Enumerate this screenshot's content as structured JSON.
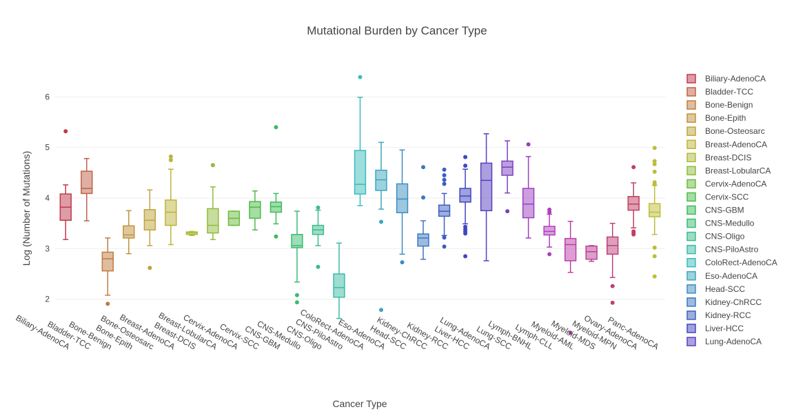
{
  "chart_data": {
    "type": "box",
    "title": "Mutational Burden by Cancer Type",
    "xlabel": "Cancer Type",
    "ylabel": "Log (Number of Mutations)",
    "ylim": [
      1.3,
      6.55
    ],
    "yticks": [
      2,
      3,
      4,
      5,
      6
    ],
    "grid": true,
    "legend_position": "right",
    "series": [
      {
        "name": "Biliary-AdenoCA",
        "color": "#c0394b",
        "min": 3.18,
        "q1": 3.56,
        "median": 3.82,
        "q3": 4.08,
        "max": 4.26,
        "outliers": [
          5.32
        ]
      },
      {
        "name": "Bladder-TCC",
        "color": "#c06048",
        "min": 3.55,
        "q1": 4.09,
        "median": 4.19,
        "q3": 4.53,
        "max": 4.78,
        "outliers": []
      },
      {
        "name": "Bone-Benign",
        "color": "#c07b3f",
        "min": 2.08,
        "q1": 2.56,
        "median": 2.8,
        "q3": 2.93,
        "max": 3.21,
        "outliers": [
          1.91
        ]
      },
      {
        "name": "Bone-Epith",
        "color": "#c0913d",
        "min": 2.9,
        "q1": 3.21,
        "median": 3.27,
        "q3": 3.45,
        "max": 3.75,
        "outliers": []
      },
      {
        "name": "Bone-Osteosarc",
        "color": "#c0a33a",
        "min": 3.06,
        "q1": 3.37,
        "median": 3.56,
        "q3": 3.77,
        "max": 4.16,
        "outliers": [
          2.62
        ]
      },
      {
        "name": "Breast-AdenoCA",
        "color": "#bdb33a",
        "min": 3.08,
        "q1": 3.46,
        "median": 3.72,
        "q3": 3.96,
        "max": 4.57,
        "outliers": [
          4.75,
          4.82
        ]
      },
      {
        "name": "Breast-DCIS",
        "color": "#aebb3a",
        "min": 3.26,
        "q1": 3.28,
        "median": 3.31,
        "q3": 3.33,
        "max": 3.34,
        "outliers": []
      },
      {
        "name": "Breast-LobularCA",
        "color": "#8fbb3b",
        "min": 3.18,
        "q1": 3.31,
        "median": 3.46,
        "q3": 3.79,
        "max": 4.22,
        "outliers": [
          4.65
        ]
      },
      {
        "name": "Cervix-AdenoCA",
        "color": "#6bbb3d",
        "min": 3.46,
        "q1": 3.46,
        "median": 3.6,
        "q3": 3.74,
        "max": 3.74,
        "outliers": []
      },
      {
        "name": "Cervix-SCC",
        "color": "#4cbb48",
        "min": 3.37,
        "q1": 3.6,
        "median": 3.82,
        "q3": 3.93,
        "max": 4.14,
        "outliers": []
      },
      {
        "name": "CNS-GBM",
        "color": "#3dbb5a",
        "min": 3.49,
        "q1": 3.72,
        "median": 3.83,
        "q3": 3.92,
        "max": 4.09,
        "outliers": [
          3.24,
          5.4
        ]
      },
      {
        "name": "CNS-Medullo",
        "color": "#3cbb72",
        "min": 2.34,
        "q1": 3.02,
        "median": 3.06,
        "q3": 3.28,
        "max": 3.74,
        "outliers": [
          1.94,
          2.08
        ]
      },
      {
        "name": "CNS-Oligo",
        "color": "#3cbb8c",
        "min": 3.06,
        "q1": 3.28,
        "median": 3.37,
        "q3": 3.46,
        "max": 3.76,
        "outliers": [
          2.64,
          3.81
        ]
      },
      {
        "name": "CNS-PiloAstro",
        "color": "#3cbba6",
        "min": 1.62,
        "q1": 2.04,
        "median": 2.23,
        "q3": 2.5,
        "max": 3.11,
        "outliers": []
      },
      {
        "name": "ColoRect-AdenoCA",
        "color": "#3cbbbb",
        "min": 3.85,
        "q1": 4.08,
        "median": 4.27,
        "q3": 4.94,
        "max": 5.99,
        "outliers": [
          6.39
        ]
      },
      {
        "name": "Eso-AdenoCA",
        "color": "#3ca5c0",
        "min": 3.78,
        "q1": 4.15,
        "median": 4.36,
        "q3": 4.55,
        "max": 5.1,
        "outliers": [
          1.79,
          3.53
        ]
      },
      {
        "name": "Head-SCC",
        "color": "#3c8ec0",
        "min": 2.89,
        "q1": 3.71,
        "median": 3.98,
        "q3": 4.28,
        "max": 4.95,
        "outliers": [
          2.73
        ]
      },
      {
        "name": "Kidney-ChRCC",
        "color": "#3c77c0",
        "min": 2.79,
        "q1": 3.05,
        "median": 3.21,
        "q3": 3.29,
        "max": 3.55,
        "outliers": [
          4.01,
          4.61
        ]
      },
      {
        "name": "Kidney-RCC",
        "color": "#3c5ec0",
        "min": 3.26,
        "q1": 3.64,
        "median": 3.74,
        "q3": 3.86,
        "max": 4.09,
        "outliers": [
          3.04,
          3.22,
          4.28,
          4.36,
          4.45,
          4.56
        ]
      },
      {
        "name": "Liver-HCC",
        "color": "#3f46c0",
        "min": 3.49,
        "q1": 3.92,
        "median": 4.04,
        "q3": 4.19,
        "max": 4.57,
        "outliers": [
          2.85,
          3.3,
          3.34,
          3.38,
          3.43,
          4.64,
          4.81
        ]
      },
      {
        "name": "Lung-AdenoCA",
        "color": "#5a3fc0",
        "min": 2.76,
        "q1": 3.75,
        "median": 4.35,
        "q3": 4.69,
        "max": 5.27,
        "outliers": []
      },
      {
        "name": "Lung-SCC",
        "color": "#7b3fc0",
        "min": 4.1,
        "q1": 4.45,
        "median": 4.61,
        "q3": 4.73,
        "max": 5.13,
        "outliers": [
          3.74
        ]
      },
      {
        "name": "Lymph-BNHL",
        "color": "#9a3fc0",
        "min": 3.21,
        "q1": 3.61,
        "median": 3.88,
        "q3": 4.19,
        "max": 4.82,
        "outliers": [
          5.06
        ]
      },
      {
        "name": "Lymph-CLL",
        "color": "#b03fbd",
        "min": 3.03,
        "q1": 3.27,
        "median": 3.34,
        "q3": 3.44,
        "max": 3.68,
        "outliers": [
          2.89,
          3.72,
          3.77
        ]
      },
      {
        "name": "Myeloid-AML",
        "color": "#bb3fa8",
        "min": 2.53,
        "q1": 2.76,
        "median": 3.08,
        "q3": 3.2,
        "max": 3.54,
        "outliers": [
          1.34
        ]
      },
      {
        "name": "Myeloid-MDS",
        "color": "#bb3f92",
        "min": 2.75,
        "q1": 2.79,
        "median": 2.94,
        "q3": 3.05,
        "max": 3.06,
        "outliers": []
      },
      {
        "name": "Myeloid-MPN",
        "color": "#bd3f7a",
        "min": 2.43,
        "q1": 2.89,
        "median": 3.06,
        "q3": 3.23,
        "max": 3.5,
        "outliers": [
          1.93,
          2.26
        ]
      },
      {
        "name": "Ovary-AdenoCA",
        "color": "#c03f62",
        "min": 3.41,
        "q1": 3.76,
        "median": 3.88,
        "q3": 4.03,
        "max": 4.3,
        "outliers": [
          3.28,
          3.31,
          3.34,
          4.61
        ]
      },
      {
        "name": "Panc-AdenoCA",
        "color": "#bdbd3a",
        "min": 3.28,
        "q1": 3.63,
        "median": 3.72,
        "q3": 3.89,
        "max": 4.25,
        "outliers": [
          2.45,
          2.85,
          3.02,
          4.27,
          4.31,
          4.52,
          4.67,
          4.73,
          4.99
        ]
      }
    ],
    "legend_entries": [
      "Biliary-AdenoCA",
      "Bladder-TCC",
      "Bone-Benign",
      "Bone-Epith",
      "Bone-Osteosarc",
      "Breast-AdenoCA",
      "Breast-DCIS",
      "Breast-LobularCA",
      "Cervix-AdenoCA",
      "Cervix-SCC",
      "CNS-GBM",
      "CNS-Medullo",
      "CNS-Oligo",
      "CNS-PiloAstro",
      "ColoRect-AdenoCA",
      "Eso-AdenoCA",
      "Head-SCC",
      "Kidney-ChRCC",
      "Kidney-RCC",
      "Liver-HCC",
      "Lung-AdenoCA"
    ]
  }
}
